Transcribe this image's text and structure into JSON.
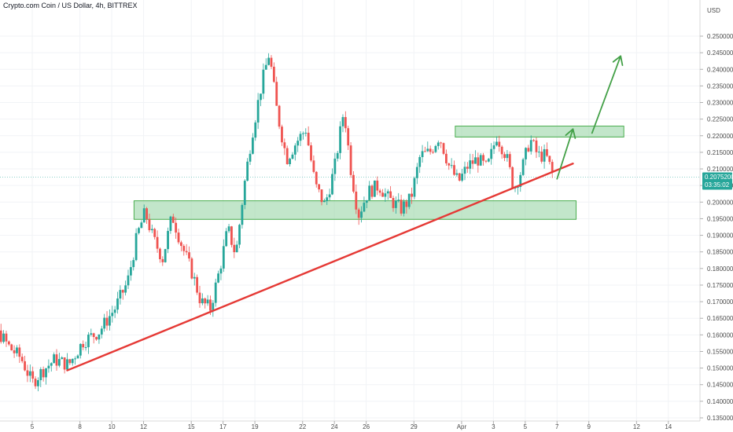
{
  "header": {
    "title": "Crypto.com Coin / US Dollar, 4h, BITTREX"
  },
  "chart_data": {
    "type": "candlestick",
    "currency": "USD",
    "ylim": [
      0.13,
      0.255
    ],
    "y_ticks": [
      0.135,
      0.14,
      0.145,
      0.15,
      0.155,
      0.16,
      0.165,
      0.17,
      0.175,
      0.18,
      0.185,
      0.19,
      0.195,
      0.2,
      0.205,
      0.21,
      0.215,
      0.22,
      0.225,
      0.23,
      0.235,
      0.24,
      0.245,
      0.25
    ],
    "y_tick_labels": [
      "0.13500000",
      "0.14000000",
      "0.14500000",
      "0.15000000",
      "0.15500000",
      "0.16000000",
      "0.16500000",
      "0.17000000",
      "0.17500000",
      "0.18000000",
      "0.18500000",
      "0.19000000",
      "0.19500000",
      "0.20000000",
      "0.20500000",
      "0.21000000",
      "0.21500000",
      "0.22000000",
      "0.22500000",
      "0.23000000",
      "0.23500000",
      "0.24000000",
      "0.24500000",
      "0.25000000"
    ],
    "x_ticks": [
      {
        "label": "5",
        "day": 5
      },
      {
        "label": "8",
        "day": 8
      },
      {
        "label": "10",
        "day": 10
      },
      {
        "label": "12",
        "day": 12
      },
      {
        "label": "15",
        "day": 15
      },
      {
        "label": "17",
        "day": 17
      },
      {
        "label": "19",
        "day": 19
      },
      {
        "label": "22",
        "day": 22
      },
      {
        "label": "24",
        "day": 24
      },
      {
        "label": "26",
        "day": 26
      },
      {
        "label": "29",
        "day": 29
      },
      {
        "label": "Apr",
        "day": 32
      },
      {
        "label": "3",
        "day": 34
      },
      {
        "label": "5",
        "day": 36
      },
      {
        "label": "7",
        "day": 38
      },
      {
        "label": "9",
        "day": 40
      },
      {
        "label": "12",
        "day": 43
      },
      {
        "label": "14",
        "day": 45
      }
    ],
    "current_price": {
      "value": "0.20752000",
      "countdown": "03:35:02",
      "price": 0.20752
    },
    "colors": {
      "up": "#26a69a",
      "down": "#ef5350",
      "zone": "#8fd19e",
      "trendline": "#e53935",
      "arrow": "#43a047"
    },
    "zones": [
      {
        "day_start": 11.4,
        "day_end": 39.2,
        "low": 0.1948,
        "high": 0.2004
      },
      {
        "day_start": 31.6,
        "day_end": 42.2,
        "low": 0.2196,
        "high": 0.2229
      }
    ],
    "trendline": {
      "from": {
        "day": 7.2,
        "price": 0.1493
      },
      "to": {
        "day": 39.0,
        "price": 0.2116
      }
    },
    "projection_arrows": [
      {
        "from": {
          "day": 38.0,
          "price": 0.207
        },
        "to": {
          "day": 39.0,
          "price": 0.222
        }
      },
      {
        "from": {
          "day": 40.2,
          "price": 0.2208
        },
        "to": {
          "day": 42.0,
          "price": 0.244
        }
      }
    ],
    "candles_keyframes": [
      {
        "day": 3.0,
        "price": 0.16
      },
      {
        "day": 3.6,
        "price": 0.156
      },
      {
        "day": 4.3,
        "price": 0.153
      },
      {
        "day": 5.0,
        "price": 0.1455
      },
      {
        "day": 5.6,
        "price": 0.149
      },
      {
        "day": 6.4,
        "price": 0.1525
      },
      {
        "day": 7.3,
        "price": 0.151
      },
      {
        "day": 8.2,
        "price": 0.158
      },
      {
        "day": 9.2,
        "price": 0.161
      },
      {
        "day": 10.2,
        "price": 0.168
      },
      {
        "day": 11.0,
        "price": 0.176
      },
      {
        "day": 11.6,
        "price": 0.19
      },
      {
        "day": 12.1,
        "price": 0.197
      },
      {
        "day": 12.6,
        "price": 0.189
      },
      {
        "day": 13.2,
        "price": 0.183
      },
      {
        "day": 13.8,
        "price": 0.196
      },
      {
        "day": 14.4,
        "price": 0.187
      },
      {
        "day": 15.1,
        "price": 0.178
      },
      {
        "day": 15.6,
        "price": 0.17
      },
      {
        "day": 16.2,
        "price": 0.168
      },
      {
        "day": 16.8,
        "price": 0.18
      },
      {
        "day": 17.3,
        "price": 0.192
      },
      {
        "day": 17.8,
        "price": 0.184
      },
      {
        "day": 18.3,
        "price": 0.204
      },
      {
        "day": 18.8,
        "price": 0.22
      },
      {
        "day": 19.4,
        "price": 0.235
      },
      {
        "day": 19.9,
        "price": 0.245
      },
      {
        "day": 20.4,
        "price": 0.227
      },
      {
        "day": 21.0,
        "price": 0.213
      },
      {
        "day": 21.6,
        "price": 0.218
      },
      {
        "day": 22.2,
        "price": 0.222
      },
      {
        "day": 22.8,
        "price": 0.205
      },
      {
        "day": 23.4,
        "price": 0.199
      },
      {
        "day": 24.0,
        "price": 0.21
      },
      {
        "day": 24.6,
        "price": 0.228
      },
      {
        "day": 25.0,
        "price": 0.211
      },
      {
        "day": 25.5,
        "price": 0.196
      },
      {
        "day": 26.1,
        "price": 0.203
      },
      {
        "day": 26.8,
        "price": 0.205
      },
      {
        "day": 27.4,
        "price": 0.201
      },
      {
        "day": 28.2,
        "price": 0.198
      },
      {
        "day": 28.8,
        "price": 0.201
      },
      {
        "day": 29.4,
        "price": 0.214
      },
      {
        "day": 30.0,
        "price": 0.215
      },
      {
        "day": 30.6,
        "price": 0.22
      },
      {
        "day": 31.2,
        "price": 0.211
      },
      {
        "day": 31.8,
        "price": 0.206
      },
      {
        "day": 32.4,
        "price": 0.211
      },
      {
        "day": 33.0,
        "price": 0.213
      },
      {
        "day": 33.6,
        "price": 0.21
      },
      {
        "day": 34.2,
        "price": 0.22
      },
      {
        "day": 34.8,
        "price": 0.214
      },
      {
        "day": 35.3,
        "price": 0.204
      },
      {
        "day": 35.8,
        "price": 0.21
      },
      {
        "day": 36.3,
        "price": 0.219
      },
      {
        "day": 36.8,
        "price": 0.214
      },
      {
        "day": 37.3,
        "price": 0.214
      },
      {
        "day": 37.8,
        "price": 0.2075
      }
    ]
  }
}
